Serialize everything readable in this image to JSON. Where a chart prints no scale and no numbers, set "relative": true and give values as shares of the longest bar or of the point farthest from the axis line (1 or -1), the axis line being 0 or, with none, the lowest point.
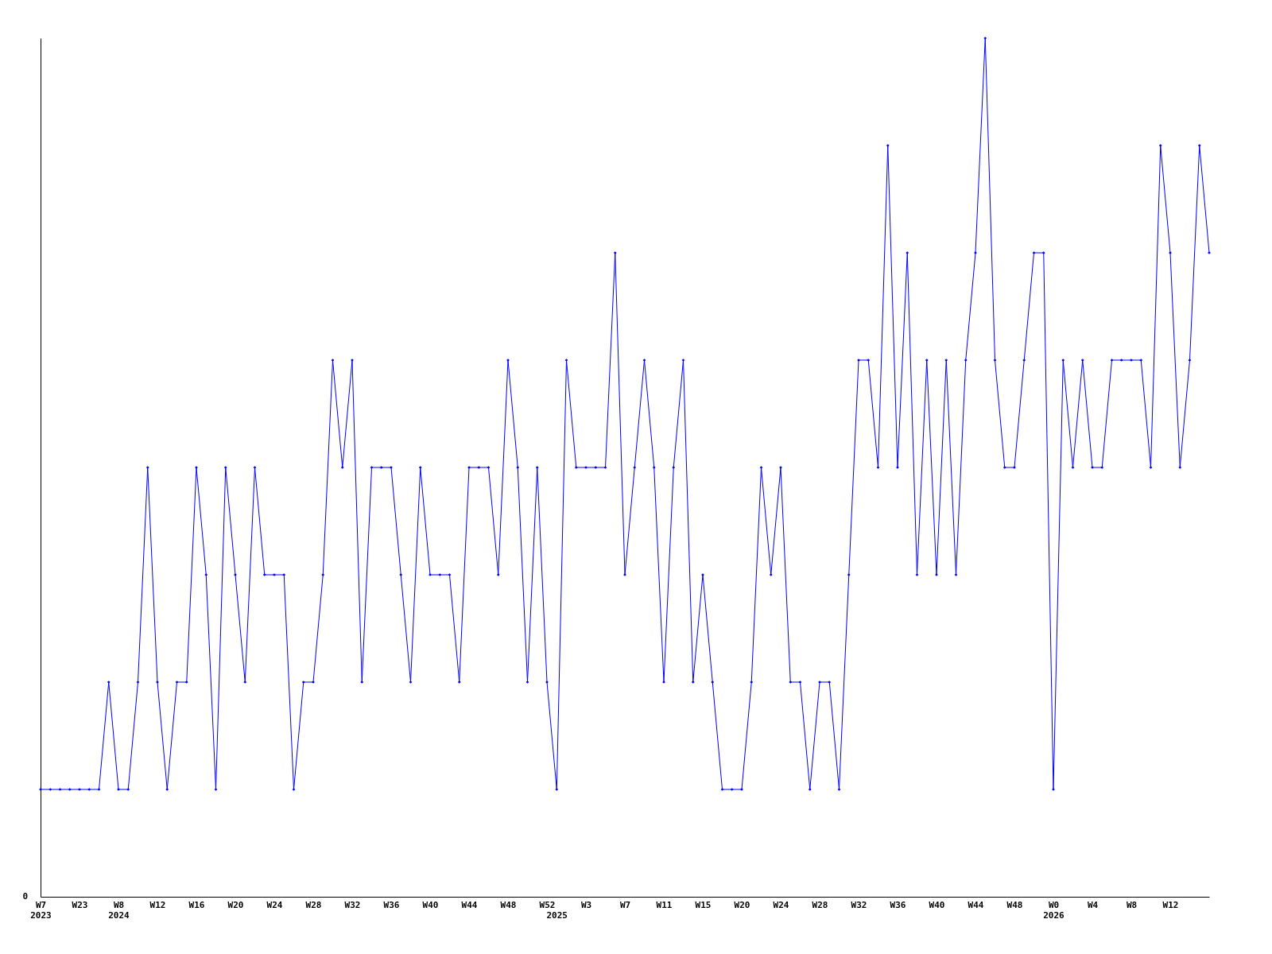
{
  "chart_data": {
    "type": "line",
    "relative": true,
    "color": "#0000ff",
    "marker": "diamond",
    "grid": false,
    "annotations": [
      "0"
    ],
    "categories": [
      "W7\n2023",
      null,
      null,
      null,
      "W23",
      null,
      null,
      null,
      "W8\n2024",
      null,
      null,
      null,
      "W12",
      null,
      null,
      null,
      "W16",
      null,
      null,
      null,
      "W20",
      null,
      null,
      null,
      "W24",
      null,
      null,
      null,
      "W28",
      null,
      null,
      null,
      "W32",
      null,
      null,
      null,
      "W36",
      null,
      null,
      null,
      "W40",
      null,
      null,
      null,
      "W44",
      null,
      null,
      null,
      "W48",
      null,
      null,
      null,
      "W52",
      "\n2025",
      null,
      null,
      "W3",
      null,
      null,
      null,
      "W7",
      null,
      null,
      null,
      "W11",
      null,
      null,
      null,
      "W15",
      null,
      null,
      null,
      "W20",
      null,
      null,
      null,
      "W24",
      null,
      null,
      null,
      "W28",
      null,
      null,
      null,
      "W32",
      null,
      null,
      null,
      "W36",
      null,
      null,
      null,
      "W40",
      null,
      null,
      null,
      "W44",
      null,
      null,
      null,
      "W48",
      null,
      null,
      null,
      "W0\n2026",
      null,
      null,
      null,
      "W4",
      null,
      null,
      null,
      "W8",
      null,
      null,
      null,
      "W12",
      null,
      null,
      null,
      null
    ],
    "values": [
      0.125,
      0.125,
      0.125,
      0.125,
      0.125,
      0.125,
      0.125,
      0.25,
      0.125,
      0.125,
      0.25,
      0.5,
      0.25,
      0.125,
      0.25,
      0.25,
      0.5,
      0.375,
      0.125,
      0.5,
      0.375,
      0.25,
      0.5,
      0.375,
      0.375,
      0.375,
      0.125,
      0.25,
      0.25,
      0.375,
      0.625,
      0.5,
      0.625,
      0.25,
      0.5,
      0.5,
      0.5,
      0.375,
      0.25,
      0.5,
      0.375,
      0.375,
      0.375,
      0.25,
      0.5,
      0.5,
      0.5,
      0.375,
      0.625,
      0.5,
      0.25,
      0.5,
      0.25,
      0.125,
      0.625,
      0.5,
      0.5,
      0.5,
      0.5,
      0.75,
      0.375,
      0.5,
      0.625,
      0.5,
      0.25,
      0.5,
      0.625,
      0.25,
      0.375,
      0.25,
      0.125,
      0.125,
      0.125,
      0.25,
      0.5,
      0.375,
      0.5,
      0.25,
      0.25,
      0.125,
      0.25,
      0.25,
      0.125,
      0.375,
      0.625,
      0.625,
      0.5,
      0.875,
      0.5,
      0.75,
      0.375,
      0.625,
      0.375,
      0.625,
      0.375,
      0.625,
      0.75,
      1,
      0.625,
      0.5,
      0.5,
      0.625,
      0.75,
      0.75,
      0.125,
      0.625,
      0.5,
      0.625,
      0.5,
      0.5,
      0.625,
      0.625,
      0.625,
      0.625,
      0.5,
      0.875,
      0.75,
      0.5,
      0.625,
      0.875,
      0.75
    ]
  }
}
